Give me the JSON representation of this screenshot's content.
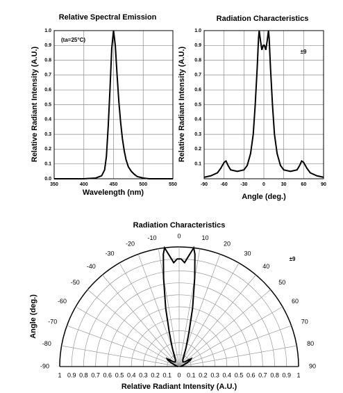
{
  "chart_data": [
    {
      "type": "line",
      "title": "Relative Spectral Emission",
      "x_label": "Wavelength (nm)",
      "y_label": "Relative Radiant Intensity (A.U.)",
      "annotation": "(ta=25°C)",
      "x": [
        350,
        400,
        420,
        430,
        435,
        438,
        441,
        444,
        447,
        450,
        453,
        456,
        459,
        462,
        465,
        468,
        471,
        475,
        480,
        485,
        490,
        500,
        510,
        550
      ],
      "values": [
        0,
        0,
        0.005,
        0.02,
        0.06,
        0.15,
        0.35,
        0.6,
        0.88,
        1.0,
        0.9,
        0.7,
        0.52,
        0.38,
        0.27,
        0.19,
        0.13,
        0.08,
        0.05,
        0.03,
        0.015,
        0.005,
        0,
        0
      ],
      "color": "#000000",
      "grid": true,
      "xlim": [
        350,
        550
      ],
      "xticks": [
        350,
        400,
        450,
        500,
        550
      ],
      "ylim": [
        0,
        1
      ],
      "yticks": [
        {
          "value": 0,
          "label": "0.0"
        },
        0.1,
        0.2,
        0.3,
        0.4,
        0.5,
        0.6,
        0.7,
        0.8,
        0.9,
        {
          "value": 1,
          "label": "1.0"
        }
      ]
    },
    {
      "type": "line",
      "title": "Radiation Characteristics",
      "x_label": "Angle (deg.)",
      "y_label": "Relative Radiant Intensity (A.U.)",
      "annotation": "±9",
      "x": [
        -90,
        -80,
        -70,
        -65,
        -60,
        -57,
        -54,
        -50,
        -40,
        -30,
        -25,
        -20,
        -16,
        -13,
        -10,
        -8,
        -7,
        -5,
        -3,
        -1,
        0,
        1,
        3,
        5,
        7,
        8,
        10,
        13,
        16,
        20,
        25,
        30,
        40,
        50,
        54,
        57,
        60,
        65,
        70,
        80,
        90
      ],
      "values": [
        0.01,
        0.02,
        0.04,
        0.07,
        0.11,
        0.12,
        0.09,
        0.06,
        0.05,
        0.06,
        0.09,
        0.17,
        0.3,
        0.5,
        0.75,
        0.95,
        1.0,
        0.93,
        0.87,
        0.9,
        0.9,
        0.9,
        0.87,
        0.93,
        1.0,
        0.95,
        0.75,
        0.5,
        0.3,
        0.17,
        0.09,
        0.06,
        0.05,
        0.06,
        0.09,
        0.12,
        0.11,
        0.07,
        0.04,
        0.02,
        0.01
      ],
      "color": "#000000",
      "grid": true,
      "xlim": [
        -90,
        90
      ],
      "xticks": [
        -90,
        -60,
        -30,
        0,
        30,
        60,
        90
      ],
      "ylim": [
        0,
        1
      ],
      "yticks": [
        0.1,
        0.2,
        0.3,
        0.4,
        0.5,
        0.6,
        0.7,
        0.8,
        0.9,
        {
          "value": 1,
          "label": "1.0"
        }
      ]
    },
    {
      "type": "polar",
      "title": "Radiation Characteristics",
      "x_label": "Relative Radiant Intensity (A.U.)",
      "y_label": "Angle (deg.)",
      "annotation": "±9",
      "x": [
        -90,
        -80,
        -70,
        -65,
        -60,
        -57,
        -54,
        -50,
        -40,
        -30,
        -25,
        -20,
        -16,
        -13,
        -10,
        -8,
        -7,
        -5,
        -3,
        -1,
        0,
        1,
        3,
        5,
        7,
        8,
        10,
        13,
        16,
        20,
        25,
        30,
        40,
        50,
        54,
        57,
        60,
        65,
        70,
        80,
        90
      ],
      "values": [
        0.01,
        0.02,
        0.04,
        0.07,
        0.11,
        0.12,
        0.09,
        0.06,
        0.05,
        0.06,
        0.09,
        0.17,
        0.3,
        0.5,
        0.75,
        0.95,
        1.0,
        0.93,
        0.87,
        0.9,
        0.9,
        0.9,
        0.87,
        0.93,
        1.0,
        0.95,
        0.75,
        0.5,
        0.3,
        0.17,
        0.09,
        0.06,
        0.05,
        0.06,
        0.09,
        0.12,
        0.11,
        0.07,
        0.04,
        0.02,
        0.01
      ],
      "color": "#000000",
      "grid": true,
      "xlim": [
        -90,
        90
      ],
      "xticks": [
        -90,
        -80,
        -70,
        -60,
        -50,
        -40,
        -30,
        -20,
        -10,
        0,
        10,
        20,
        30,
        40,
        50,
        60,
        70,
        80,
        90
      ],
      "ylim": [
        0,
        1
      ],
      "yticks": [
        0,
        0.1,
        0.2,
        0.3,
        0.4,
        0.5,
        0.6,
        0.7,
        0.8,
        0.9,
        1
      ]
    }
  ]
}
